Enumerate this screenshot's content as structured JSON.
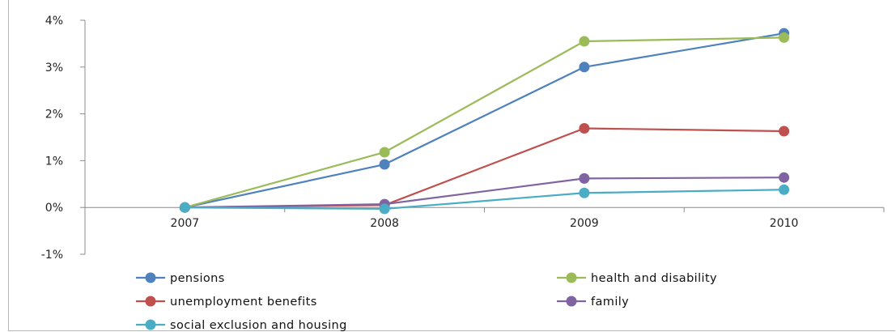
{
  "chart_data": {
    "type": "line",
    "title": "",
    "xlabel": "",
    "ylabel": "",
    "categories": [
      "2007",
      "2008",
      "2009",
      "2010"
    ],
    "y_ticks": [
      "-1%",
      "0%",
      "1%",
      "2%",
      "3%",
      "4%"
    ],
    "ylim": [
      -1,
      4
    ],
    "y_unit": "%",
    "grid": false,
    "legend_position": "bottom",
    "series": [
      {
        "name": "pensions",
        "color": "#4f81bd",
        "values": [
          0.0,
          0.92,
          3.0,
          3.72
        ]
      },
      {
        "name": "health and disability",
        "color": "#9bbb59",
        "values": [
          0.0,
          1.18,
          3.55,
          3.63
        ]
      },
      {
        "name": "unemployment benefits",
        "color": "#c0504d",
        "values": [
          0.0,
          0.05,
          1.69,
          1.63
        ]
      },
      {
        "name": "family",
        "color": "#8064a2",
        "values": [
          0.0,
          0.07,
          0.62,
          0.64
        ]
      },
      {
        "name": "social exclusion and housing",
        "color": "#4bacc6",
        "values": [
          0.0,
          -0.03,
          0.31,
          0.38
        ]
      }
    ]
  }
}
